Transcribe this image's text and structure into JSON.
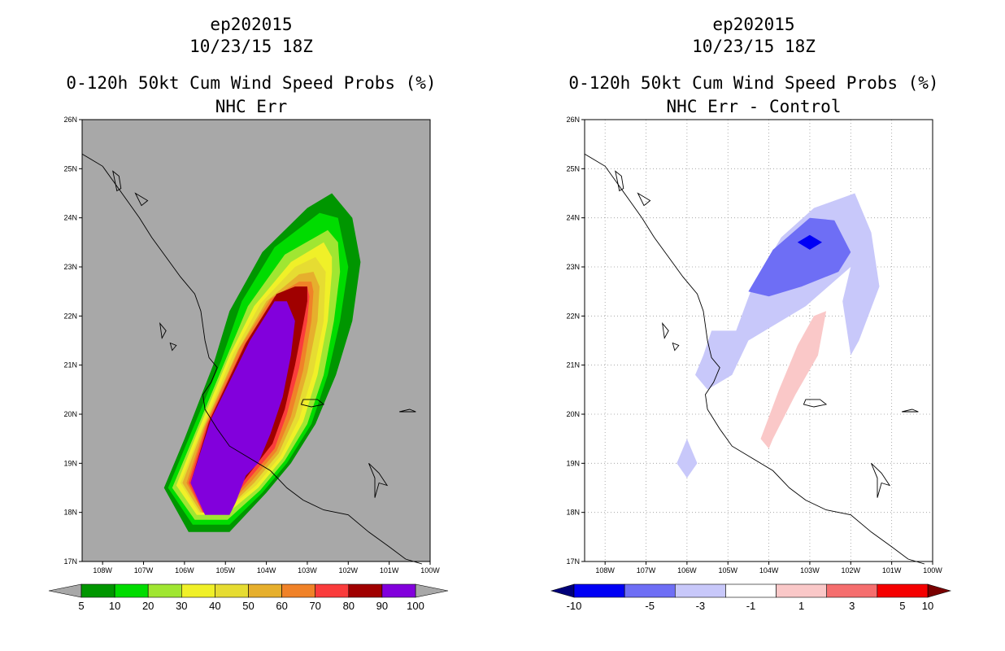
{
  "chart_data": [
    {
      "type": "contour-map",
      "storm_id": "ep202015",
      "datetime": "10/23/15 18Z",
      "title": "0-120h 50kt Cum Wind Speed Probs (%)",
      "subtitle": "NHC Err",
      "x_ticks": [
        "108W",
        "107W",
        "106W",
        "105W",
        "104W",
        "103W",
        "102W",
        "101W",
        "100W"
      ],
      "y_ticks": [
        "17N",
        "18N",
        "19N",
        "20N",
        "21N",
        "22N",
        "23N",
        "24N",
        "25N",
        "26N"
      ],
      "xlim": [
        -108.5,
        -100.0
      ],
      "ylim": [
        17,
        26
      ],
      "background_color": "#a8a8a8",
      "colorbar": {
        "labels": [
          "5",
          "10",
          "20",
          "30",
          "40",
          "50",
          "60",
          "70",
          "80",
          "90",
          "100"
        ],
        "colors": [
          "#009600",
          "#00dc00",
          "#a0e632",
          "#f0f028",
          "#e6dc32",
          "#e6af2d",
          "#f08228",
          "#fa3c3c",
          "#a00000",
          "#8200dc"
        ],
        "end_colors": [
          "#a8a8a8",
          "#a8a8a8"
        ]
      },
      "contours": [
        {
          "level": 5,
          "color": "#009600",
          "points": [
            [
              -104.9,
              17.6
            ],
            [
              -105.9,
              17.6
            ],
            [
              -106.5,
              18.5
            ],
            [
              -106.0,
              19.5
            ],
            [
              -105.3,
              21.0
            ],
            [
              -104.9,
              22.1
            ],
            [
              -104.1,
              23.3
            ],
            [
              -103.0,
              24.2
            ],
            [
              -102.4,
              24.5
            ],
            [
              -101.9,
              24.0
            ],
            [
              -101.7,
              23.1
            ],
            [
              -101.9,
              21.9
            ],
            [
              -102.3,
              20.8
            ],
            [
              -102.8,
              19.8
            ],
            [
              -103.4,
              19.0
            ],
            [
              -104.0,
              18.4
            ]
          ]
        },
        {
          "level": 10,
          "color": "#00dc00",
          "points": [
            [
              -104.9,
              17.75
            ],
            [
              -105.8,
              17.75
            ],
            [
              -106.4,
              18.5
            ],
            [
              -105.9,
              19.5
            ],
            [
              -105.1,
              21.1
            ],
            [
              -104.6,
              22.3
            ],
            [
              -103.8,
              23.4
            ],
            [
              -102.7,
              24.1
            ],
            [
              -102.25,
              24.0
            ],
            [
              -102.0,
              23.0
            ],
            [
              -102.2,
              21.9
            ],
            [
              -102.5,
              20.8
            ],
            [
              -102.9,
              19.8
            ],
            [
              -103.5,
              19.0
            ],
            [
              -104.1,
              18.4
            ]
          ]
        },
        {
          "level": 20,
          "color": "#a0e632",
          "points": [
            [
              -104.95,
              17.85
            ],
            [
              -105.75,
              17.85
            ],
            [
              -106.3,
              18.5
            ],
            [
              -105.8,
              19.5
            ],
            [
              -105.0,
              21.1
            ],
            [
              -104.45,
              22.2
            ],
            [
              -103.55,
              23.25
            ],
            [
              -102.5,
              23.75
            ],
            [
              -102.25,
              23.5
            ],
            [
              -102.2,
              22.9
            ],
            [
              -102.35,
              21.9
            ],
            [
              -102.6,
              20.8
            ],
            [
              -103.0,
              19.8
            ],
            [
              -103.55,
              19.05
            ],
            [
              -104.15,
              18.45
            ]
          ]
        },
        {
          "level": 30,
          "color": "#f0f028",
          "points": [
            [
              -105.0,
              17.95
            ],
            [
              -105.7,
              17.95
            ],
            [
              -106.2,
              18.55
            ],
            [
              -105.7,
              19.6
            ],
            [
              -104.9,
              21.2
            ],
            [
              -104.3,
              22.2
            ],
            [
              -103.4,
              23.1
            ],
            [
              -102.6,
              23.5
            ],
            [
              -102.4,
              23.2
            ],
            [
              -102.4,
              22.9
            ],
            [
              -102.5,
              21.9
            ],
            [
              -102.75,
              20.8
            ],
            [
              -103.1,
              19.85
            ],
            [
              -103.6,
              19.1
            ],
            [
              -104.2,
              18.5
            ]
          ]
        },
        {
          "level": 40,
          "color": "#e6dc32",
          "points": [
            [
              -105.05,
              18.0
            ],
            [
              -105.65,
              18.0
            ],
            [
              -106.1,
              18.6
            ],
            [
              -105.6,
              19.65
            ],
            [
              -104.8,
              21.25
            ],
            [
              -104.15,
              22.25
            ],
            [
              -103.3,
              23.0
            ],
            [
              -102.8,
              23.2
            ],
            [
              -102.55,
              22.9
            ],
            [
              -102.6,
              21.9
            ],
            [
              -102.85,
              20.85
            ],
            [
              -103.2,
              19.9
            ],
            [
              -103.65,
              19.15
            ],
            [
              -104.25,
              18.55
            ]
          ]
        },
        {
          "level": 50,
          "color": "#e6af2d",
          "points": [
            [
              -105.05,
              18.0
            ],
            [
              -105.6,
              18.0
            ],
            [
              -106.05,
              18.6
            ],
            [
              -105.55,
              19.7
            ],
            [
              -104.7,
              21.3
            ],
            [
              -104.0,
              22.3
            ],
            [
              -103.2,
              22.85
            ],
            [
              -102.85,
              22.9
            ],
            [
              -102.7,
              22.6
            ],
            [
              -102.75,
              21.9
            ],
            [
              -103.0,
              20.85
            ],
            [
              -103.3,
              19.95
            ],
            [
              -103.7,
              19.2
            ],
            [
              -104.3,
              18.6
            ]
          ]
        },
        {
          "level": 60,
          "color": "#f08228",
          "points": [
            [
              -105.1,
              18.0
            ],
            [
              -105.55,
              18.0
            ],
            [
              -105.95,
              18.6
            ],
            [
              -105.5,
              19.75
            ],
            [
              -104.65,
              21.35
            ],
            [
              -103.9,
              22.35
            ],
            [
              -103.2,
              22.7
            ],
            [
              -102.9,
              22.7
            ],
            [
              -102.85,
              22.5
            ],
            [
              -102.9,
              21.9
            ],
            [
              -103.1,
              20.9
            ],
            [
              -103.4,
              19.95
            ],
            [
              -103.75,
              19.25
            ],
            [
              -104.35,
              18.65
            ]
          ]
        },
        {
          "level": 70,
          "color": "#fa3c3c",
          "points": [
            [
              -105.1,
              18.0
            ],
            [
              -105.55,
              18.0
            ],
            [
              -105.9,
              18.6
            ],
            [
              -105.45,
              19.8
            ],
            [
              -104.55,
              21.4
            ],
            [
              -103.8,
              22.4
            ],
            [
              -103.2,
              22.6
            ],
            [
              -103.0,
              22.6
            ],
            [
              -102.95,
              22.4
            ],
            [
              -103.0,
              21.9
            ],
            [
              -103.2,
              20.95
            ],
            [
              -103.5,
              20.0
            ],
            [
              -103.8,
              19.3
            ],
            [
              -104.4,
              18.7
            ]
          ]
        },
        {
          "level": 80,
          "color": "#a00000",
          "points": [
            [
              -105.15,
              18.0
            ],
            [
              -105.5,
              18.0
            ],
            [
              -105.85,
              18.6
            ],
            [
              -105.4,
              19.85
            ],
            [
              -104.5,
              21.45
            ],
            [
              -103.75,
              22.45
            ],
            [
              -103.3,
              22.6
            ],
            [
              -103.0,
              22.6
            ],
            [
              -103.0,
              22.3
            ],
            [
              -103.1,
              21.85
            ],
            [
              -103.3,
              21.0
            ],
            [
              -103.55,
              20.1
            ],
            [
              -103.85,
              19.4
            ],
            [
              -104.45,
              18.75
            ]
          ]
        },
        {
          "level": 90,
          "color": "#8200dc",
          "points": [
            [
              -105.2,
              17.95
            ],
            [
              -105.5,
              17.95
            ],
            [
              -105.85,
              18.6
            ],
            [
              -105.35,
              19.9
            ],
            [
              -104.4,
              21.5
            ],
            [
              -103.8,
              22.3
            ],
            [
              -103.5,
              22.3
            ],
            [
              -103.3,
              21.9
            ],
            [
              -103.4,
              21.2
            ],
            [
              -103.6,
              20.35
            ],
            [
              -103.9,
              19.6
            ],
            [
              -104.2,
              19.0
            ],
            [
              -104.5,
              18.75
            ],
            [
              -104.75,
              18.2
            ],
            [
              -104.9,
              17.95
            ]
          ]
        }
      ]
    },
    {
      "type": "contour-map",
      "storm_id": "ep202015",
      "datetime": "10/23/15 18Z",
      "title": "0-120h 50kt Cum Wind Speed Probs (%)",
      "subtitle": "NHC Err - Control",
      "x_ticks": [
        "108W",
        "107W",
        "106W",
        "105W",
        "104W",
        "103W",
        "102W",
        "101W",
        "100W"
      ],
      "y_ticks": [
        "17N",
        "18N",
        "19N",
        "20N",
        "21N",
        "22N",
        "23N",
        "24N",
        "25N",
        "26N"
      ],
      "xlim": [
        -108.5,
        -100.0
      ],
      "ylim": [
        17,
        26
      ],
      "background_color": "#ffffff",
      "colorbar": {
        "labels": [
          "-10",
          "-5",
          "-3",
          "-1",
          "1",
          "3",
          "5",
          "10"
        ],
        "colors": [
          "#0000f5",
          "#6e6ef5",
          "#c8c8fa",
          "#ffffff",
          "#fac8c8",
          "#f56e6e",
          "#f50000"
        ],
        "end_colors": [
          "#00007a",
          "#7a0000"
        ]
      },
      "contours": [
        {
          "level": -1,
          "color": "#c8c8fa",
          "points": [
            [
              -104.8,
              21.7
            ],
            [
              -104.4,
              22.6
            ],
            [
              -103.7,
              23.6
            ],
            [
              -102.9,
              24.2
            ],
            [
              -101.9,
              24.5
            ],
            [
              -101.5,
              23.7
            ],
            [
              -101.3,
              22.6
            ],
            [
              -101.8,
              21.5
            ],
            [
              -102.0,
              21.2
            ],
            [
              -102.2,
              22.3
            ],
            [
              -102.0,
              23.0
            ],
            [
              -103.1,
              22.2
            ],
            [
              -104.5,
              21.5
            ],
            [
              -104.9,
              20.8
            ],
            [
              -105.5,
              20.5
            ],
            [
              -105.8,
              20.8
            ],
            [
              -105.6,
              21.2
            ],
            [
              -105.4,
              21.7
            ]
          ]
        },
        {
          "level": -1,
          "color": "#c8c8fa",
          "points": [
            [
              -106.0,
              19.5
            ],
            [
              -105.75,
              19.0
            ],
            [
              -106.0,
              18.7
            ],
            [
              -106.25,
              19.0
            ]
          ]
        },
        {
          "level": -3,
          "color": "#6e6ef5",
          "points": [
            [
              -104.5,
              22.5
            ],
            [
              -103.9,
              23.35
            ],
            [
              -103.0,
              24.0
            ],
            [
              -102.4,
              23.95
            ],
            [
              -102.0,
              23.3
            ],
            [
              -102.3,
              22.9
            ],
            [
              -103.2,
              22.6
            ],
            [
              -104.0,
              22.4
            ]
          ]
        },
        {
          "level": -5,
          "color": "#0000f5",
          "points": [
            [
              -103.3,
              23.5
            ],
            [
              -103.0,
              23.65
            ],
            [
              -102.7,
              23.5
            ],
            [
              -103.0,
              23.35
            ]
          ]
        },
        {
          "level": 1,
          "color": "#fac8c8",
          "points": [
            [
              -104.2,
              19.5
            ],
            [
              -103.75,
              20.5
            ],
            [
              -103.3,
              21.4
            ],
            [
              -102.9,
              22.0
            ],
            [
              -102.6,
              22.1
            ],
            [
              -102.8,
              21.2
            ],
            [
              -103.35,
              20.4
            ],
            [
              -103.9,
              19.5
            ],
            [
              -104.0,
              19.3
            ]
          ]
        }
      ]
    }
  ]
}
